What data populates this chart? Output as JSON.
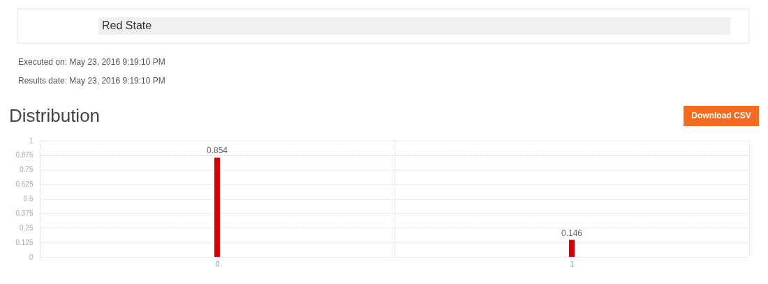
{
  "chart_data": {
    "type": "bar",
    "title": "Distribution",
    "categories": [
      "0",
      "1"
    ],
    "values": [
      0.854,
      0.146
    ],
    "color": "#d50000",
    "ylim": [
      0,
      1
    ],
    "yticks": [
      0,
      0.125,
      0.25,
      0.375,
      0.5,
      0.625,
      0.75,
      0.875,
      1
    ],
    "grid": true,
    "data_labels": true,
    "annotations": [
      "Red State",
      "Executed on: May 23, 2016 9:19:10 PM",
      "Results date: May 23, 2016 9:19:10 PM",
      "Download CSV"
    ]
  }
}
